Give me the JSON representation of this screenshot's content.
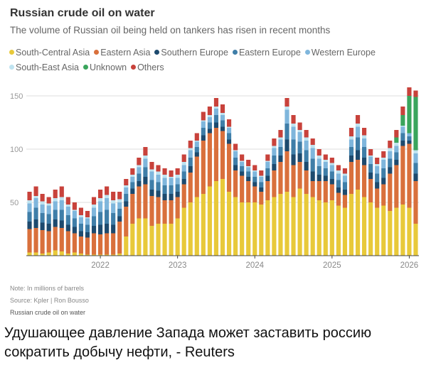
{
  "chart_data": {
    "type": "bar",
    "stacked": true,
    "title": "Russian crude oil on water",
    "subtitle": "The volume of Russian oil being held on tankers has risen in recent months",
    "xlabel": "",
    "ylabel": "",
    "ylim": [
      0,
      160
    ],
    "yticks": [
      50,
      100,
      150
    ],
    "xtick_labels": [
      "2022",
      "2023",
      "2024",
      "2025",
      "2026"
    ],
    "grid": true,
    "legend_placement": "top",
    "categories": [
      "2021-02",
      "2021-03",
      "2021-04",
      "2021-05",
      "2021-06",
      "2021-07",
      "2021-08",
      "2021-09",
      "2021-10",
      "2021-11",
      "2021-12",
      "2022-01",
      "2022-02",
      "2022-03",
      "2022-04",
      "2022-05",
      "2022-06",
      "2022-07",
      "2022-08",
      "2022-09",
      "2022-10",
      "2022-11",
      "2022-12",
      "2023-01",
      "2023-02",
      "2023-03",
      "2023-04",
      "2023-05",
      "2023-06",
      "2023-07",
      "2023-08",
      "2023-09",
      "2023-10",
      "2023-11",
      "2023-12",
      "2024-01",
      "2024-02",
      "2024-03",
      "2024-04",
      "2024-05",
      "2024-06",
      "2024-07",
      "2024-08",
      "2024-09",
      "2024-10",
      "2024-11",
      "2024-12",
      "2025-01",
      "2025-02",
      "2025-03",
      "2025-04",
      "2025-05",
      "2025-06",
      "2025-07",
      "2025-08",
      "2025-09",
      "2025-10",
      "2025-11",
      "2025-12",
      "2026-01",
      "2026-02"
    ],
    "series": [
      {
        "name": "South-Central Asia",
        "color": "#e8c93a",
        "values": [
          3,
          3,
          2,
          3,
          5,
          4,
          2,
          3,
          2,
          1,
          1,
          1,
          1,
          1,
          2,
          18,
          30,
          35,
          35,
          28,
          30,
          30,
          30,
          35,
          45,
          50,
          55,
          58,
          65,
          70,
          72,
          60,
          55,
          50,
          50,
          50,
          48,
          52,
          55,
          58,
          60,
          55,
          63,
          58,
          55,
          52,
          50,
          52,
          47,
          45,
          58,
          62,
          55,
          50,
          45,
          47,
          42,
          45,
          48,
          45,
          30
        ]
      },
      {
        "name": "Eastern Asia",
        "color": "#d9703c",
        "values": [
          22,
          23,
          22,
          20,
          22,
          22,
          21,
          18,
          16,
          16,
          20,
          19,
          20,
          20,
          30,
          28,
          28,
          30,
          32,
          28,
          25,
          22,
          22,
          20,
          22,
          28,
          38,
          50,
          50,
          50,
          45,
          45,
          25,
          25,
          20,
          15,
          12,
          18,
          25,
          30,
          38,
          30,
          25,
          22,
          15,
          18,
          20,
          15,
          12,
          12,
          30,
          28,
          30,
          22,
          18,
          20,
          35,
          40,
          55,
          60,
          40
        ]
      },
      {
        "name": "Southern Europe",
        "color": "#1d4a6e",
        "values": [
          7,
          8,
          7,
          7,
          7,
          7,
          6,
          6,
          5,
          5,
          7,
          9,
          9,
          8,
          5,
          5,
          5,
          5,
          7,
          6,
          6,
          6,
          6,
          5,
          5,
          6,
          4,
          5,
          4,
          5,
          4,
          4,
          5,
          4,
          4,
          4,
          4,
          5,
          6,
          6,
          11,
          10,
          8,
          8,
          9,
          6,
          5,
          5,
          5,
          5,
          6,
          9,
          7,
          6,
          6,
          6,
          6,
          5,
          5,
          3,
          7
        ]
      },
      {
        "name": "Eastern Europe",
        "color": "#3f7ea8",
        "values": [
          9,
          11,
          9,
          9,
          9,
          10,
          9,
          8,
          7,
          7,
          9,
          12,
          13,
          11,
          7,
          7,
          6,
          7,
          9,
          9,
          8,
          8,
          8,
          7,
          7,
          8,
          5,
          7,
          6,
          7,
          6,
          6,
          7,
          5,
          5,
          5,
          5,
          7,
          8,
          8,
          15,
          14,
          11,
          11,
          12,
          8,
          7,
          7,
          7,
          7,
          8,
          12,
          10,
          8,
          8,
          9,
          8,
          7,
          7,
          4,
          10
        ]
      },
      {
        "name": "Western Europe",
        "color": "#7fb6dc",
        "values": [
          8,
          9,
          8,
          8,
          8,
          9,
          8,
          7,
          6,
          6,
          8,
          10,
          11,
          9,
          6,
          6,
          5,
          6,
          8,
          8,
          7,
          7,
          7,
          6,
          6,
          7,
          5,
          6,
          5,
          6,
          5,
          5,
          6,
          4,
          4,
          5,
          5,
          6,
          7,
          7,
          13,
          12,
          9,
          9,
          10,
          7,
          6,
          6,
          6,
          6,
          7,
          10,
          8,
          7,
          7,
          8,
          7,
          6,
          6,
          3,
          9
        ]
      },
      {
        "name": "South-East Asia",
        "color": "#bfe3f0",
        "values": [
          3,
          2,
          3,
          2,
          3,
          3,
          2,
          1,
          2,
          1,
          3,
          3,
          3,
          3,
          3,
          2,
          2,
          2,
          3,
          2,
          3,
          3,
          1,
          3,
          3,
          2,
          1,
          1,
          2,
          2,
          2,
          1,
          1,
          1,
          1,
          1,
          1,
          1,
          2,
          2,
          3,
          3,
          2,
          3,
          3,
          3,
          2,
          2,
          3,
          2,
          3,
          3,
          3,
          1,
          2,
          2,
          3,
          3,
          1,
          0,
          3
        ]
      },
      {
        "name": "Unknown",
        "color": "#3aa55c",
        "values": [
          0,
          0,
          0,
          0,
          0,
          0,
          0,
          0,
          0,
          0,
          0,
          0,
          0,
          0,
          0,
          0,
          0,
          0,
          0,
          0,
          0,
          0,
          0,
          0,
          0,
          0,
          0,
          0,
          0,
          0,
          0,
          0,
          0,
          0,
          0,
          0,
          0,
          0,
          0,
          0,
          0,
          0,
          0,
          0,
          0,
          0,
          0,
          0,
          0,
          0,
          0,
          0,
          0,
          0,
          0,
          0,
          0,
          5,
          10,
          35,
          50
        ]
      },
      {
        "name": "Others",
        "color": "#c8423b",
        "values": [
          8,
          9,
          7,
          6,
          8,
          10,
          7,
          7,
          7,
          6,
          7,
          8,
          8,
          8,
          7,
          6,
          6,
          7,
          8,
          7,
          6,
          6,
          6,
          6,
          7,
          7,
          7,
          8,
          8,
          8,
          8,
          7,
          6,
          6,
          6,
          5,
          5,
          6,
          7,
          7,
          8,
          8,
          7,
          7,
          6,
          6,
          5,
          5,
          5,
          5,
          8,
          8,
          7,
          6,
          6,
          6,
          7,
          7,
          8,
          8,
          6
        ]
      }
    ],
    "notes": [
      "Note: In millions of barrels",
      "Source: Kpler | Ron Bousso",
      "Russian crude oil on water"
    ]
  },
  "headline": "Удушающее давление Запада может заставить россию сократить добычу нефти, - Reuters"
}
